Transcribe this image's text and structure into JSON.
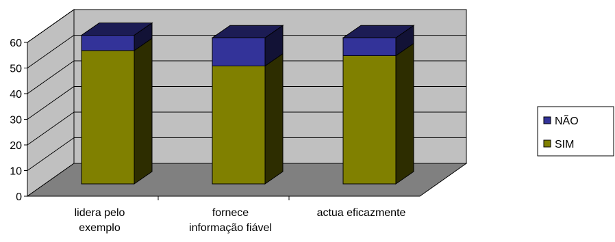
{
  "chart_data": {
    "type": "bar",
    "stacked": true,
    "three_d": true,
    "title": "",
    "xlabel": "",
    "ylabel": "",
    "categories": [
      [
        "lidera pelo",
        "exemplo"
      ],
      [
        "fornece",
        "informação fiável"
      ],
      [
        "actua eficazmente"
      ]
    ],
    "series": [
      {
        "name": "SIM",
        "values": [
          52,
          46,
          50
        ],
        "color": "#808000"
      },
      {
        "name": "NÃO",
        "values": [
          6,
          11,
          7
        ],
        "color": "#333399"
      }
    ],
    "ylim": [
      0,
      60
    ],
    "yticks": [
      0,
      10,
      20,
      30,
      40,
      50,
      60
    ],
    "grid": true,
    "legend": "right",
    "legend_order": [
      "NÃO",
      "SIM"
    ],
    "colors": {
      "back_wall": "#c0c0c0",
      "floor": "#808080",
      "grid": "#000000"
    }
  }
}
